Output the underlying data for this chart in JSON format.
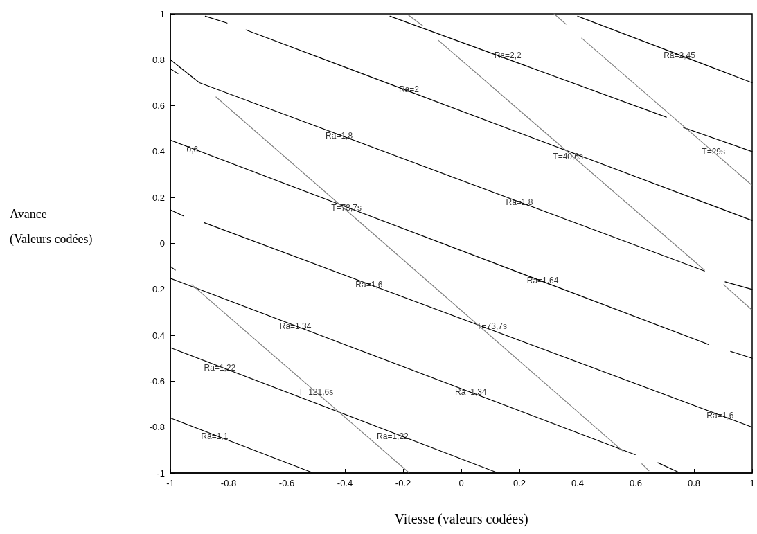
{
  "chart_data": {
    "type": "line",
    "xlabel": "Vitesse (valeurs codées)",
    "ylabel": "Avance\n\n(Valeurs codées)",
    "xlim": [
      -1,
      1
    ],
    "xticks": [
      -1,
      -0.8,
      -0.6,
      -0.4,
      -0.2,
      0,
      0.2,
      0.4,
      0.6,
      0.8,
      1
    ],
    "ylim": [
      -1,
      1
    ],
    "yticks": [
      1,
      0.8,
      0.6,
      0.4,
      0.2,
      0,
      {
        "value": -0.2,
        "label": "0.2"
      },
      {
        "value": -0.4,
        "label": "0.4"
      },
      -0.6,
      -0.8,
      -1
    ],
    "grid": false,
    "marker": "none",
    "line_style": "solid",
    "series": [
      {
        "color": "#000000",
        "x": [
          0.4,
          1
        ],
        "values": [
          0.99,
          0.7
        ]
      },
      {
        "color": "#000000",
        "x": [
          -0.245,
          0.705,
          0.735,
          0.764,
          1
        ],
        "values": [
          0.99,
          0.55,
          null,
          0.505,
          0.4
        ]
      },
      {
        "color": "#000000",
        "x": [
          -0.74,
          1
        ],
        "values": [
          0.93,
          0.1
        ]
      },
      {
        "color": "#000000",
        "x": [
          -0.88,
          -0.805
        ],
        "values": [
          0.99,
          0.96
        ]
      },
      {
        "color": "#000000",
        "x": [
          -1,
          -0.9,
          0.836
        ],
        "values": [
          0.8,
          0.7,
          -0.12
        ]
      },
      {
        "color": "#000000",
        "x": [
          -1,
          -0.974
        ],
        "values": [
          0.76,
          0.74
        ]
      },
      {
        "color": "#000000",
        "x": [
          0.907,
          1
        ],
        "values": [
          -0.167,
          -0.2
        ]
      },
      {
        "color": "#000000",
        "x": [
          -1,
          0.85
        ],
        "values": [
          0.45,
          -0.44
        ]
      },
      {
        "color": "#000000",
        "x": [
          0.926,
          1
        ],
        "values": [
          -0.47,
          -0.5
        ]
      },
      {
        "color": "#000000",
        "x": [
          -1,
          -0.955
        ],
        "values": [
          0.146,
          0.12
        ]
      },
      {
        "color": "#000000",
        "x": [
          -0.883,
          1
        ],
        "values": [
          0.09,
          -0.8
        ]
      },
      {
        "color": "#000000",
        "x": [
          -1,
          -0.983
        ],
        "values": [
          -0.1,
          -0.116
        ]
      },
      {
        "color": "#000000",
        "x": [
          -1,
          0.598
        ],
        "values": [
          -0.152,
          -0.92
        ]
      },
      {
        "color": "#000000",
        "x": [
          -1,
          0.121
        ],
        "values": [
          -0.454,
          -0.997
        ]
      },
      {
        "color": "#000000",
        "x": [
          -1,
          -0.514
        ],
        "values": [
          -0.76,
          -0.997
        ]
      },
      {
        "color": "#000000",
        "x": [
          0.676,
          0.748
        ],
        "values": [
          -0.955,
          -0.997
        ]
      },
      {
        "color": "#808080",
        "x": [
          -0.926,
          -0.181
        ],
        "values": [
          -0.18,
          -0.997
        ]
      },
      {
        "color": "#808080",
        "x": [
          -0.843,
          0.557
        ],
        "values": [
          0.638,
          -0.906
        ]
      },
      {
        "color": "#808080",
        "x": [
          0.621,
          0.645
        ],
        "values": [
          -0.96,
          -0.99
        ]
      },
      {
        "color": "#808080",
        "x": [
          -0.079,
          0.836
        ],
        "values": [
          0.885,
          -0.116
        ]
      },
      {
        "color": "#808080",
        "x": [
          0.319,
          0.36
        ],
        "values": [
          1,
          0.955
        ]
      },
      {
        "color": "#808080",
        "x": [
          -0.181,
          -0.133
        ],
        "values": [
          0.994,
          0.949
        ]
      },
      {
        "color": "#808080",
        "x": [
          0.414,
          0.998
        ],
        "values": [
          0.894,
          0.255
        ]
      },
      {
        "color": "#808080",
        "x": [
          0.902,
          0.998
        ],
        "values": [
          -0.18,
          -0.288
        ]
      }
    ],
    "annotations": [
      {
        "text": "Ra=2,45",
        "x": 0.75,
        "y": 0.82
      },
      {
        "text": "Ra=2,2",
        "x": 0.16,
        "y": 0.82
      },
      {
        "text": "Ra=2",
        "x": -0.18,
        "y": 0.67
      },
      {
        "text": "Ra=1,8",
        "x": -0.42,
        "y": 0.47
      },
      {
        "text": "Ra=1,8",
        "x": 0.2,
        "y": 0.18
      },
      {
        "text": "T=40,6s",
        "x": 0.367,
        "y": 0.38
      },
      {
        "text": "T=29s",
        "x": 0.867,
        "y": 0.4
      },
      {
        "text": "0,6",
        "x": -0.924,
        "y": 0.41
      },
      {
        "text": "T=73,7s",
        "x": -0.395,
        "y": 0.155
      },
      {
        "text": "T=73,7s",
        "x": 0.105,
        "y": -0.36
      },
      {
        "text": "Ra=1,64",
        "x": 0.28,
        "y": -0.16
      },
      {
        "text": "Ra=1,6",
        "x": -0.317,
        "y": -0.18
      },
      {
        "text": "Ra=1,6",
        "x": 0.89,
        "y": -0.75
      },
      {
        "text": "Ra=1,34",
        "x": -0.57,
        "y": -0.36
      },
      {
        "text": "Ra=1,34",
        "x": 0.033,
        "y": -0.648
      },
      {
        "text": "Ra=1,22",
        "x": -0.83,
        "y": -0.54
      },
      {
        "text": "Ra=1,22",
        "x": -0.236,
        "y": -0.84
      },
      {
        "text": "T=121,6s",
        "x": -0.5,
        "y": -0.647
      },
      {
        "text": "Ra=1,1",
        "x": -0.848,
        "y": -0.84
      }
    ]
  }
}
